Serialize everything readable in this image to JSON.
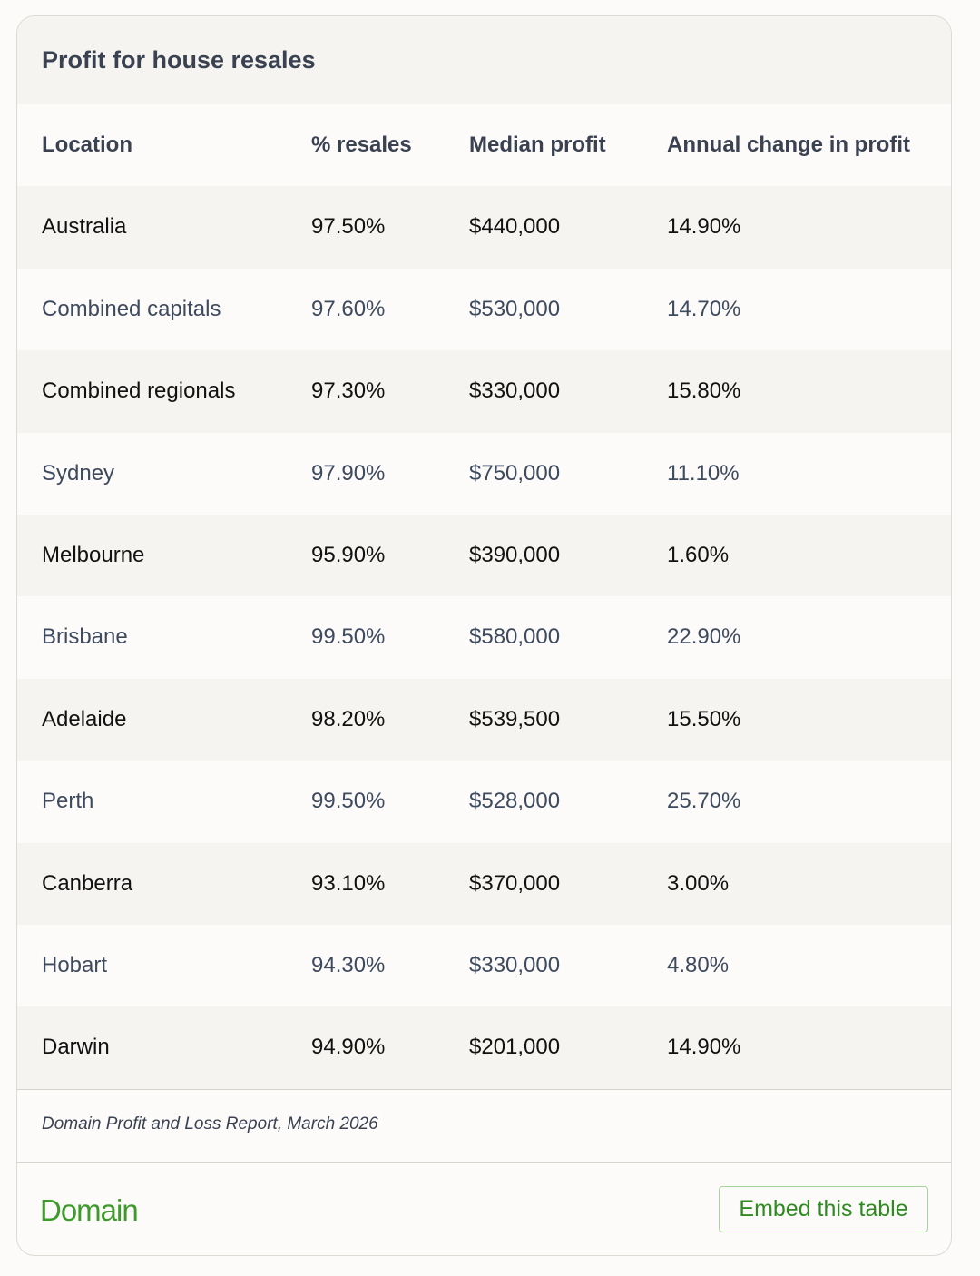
{
  "header": {
    "title": "Profit for house resales"
  },
  "table": {
    "columns": [
      "Location",
      "% resales",
      "Median profit",
      "Annual change in profit"
    ],
    "rows": [
      [
        "Australia",
        "97.50%",
        "$440,000",
        "14.90%"
      ],
      [
        "Combined capitals",
        "97.60%",
        "$530,000",
        "14.70%"
      ],
      [
        "Combined regionals",
        "97.30%",
        "$330,000",
        "15.80%"
      ],
      [
        "Sydney",
        "97.90%",
        "$750,000",
        "11.10%"
      ],
      [
        "Melbourne",
        "95.90%",
        "$390,000",
        "1.60%"
      ],
      [
        "Brisbane",
        "99.50%",
        "$580,000",
        "22.90%"
      ],
      [
        "Adelaide",
        "98.20%",
        "$539,500",
        "15.50%"
      ],
      [
        "Perth",
        "99.50%",
        "$528,000",
        "25.70%"
      ],
      [
        "Canberra",
        "93.10%",
        "$370,000",
        "3.00%"
      ],
      [
        "Hobart",
        "94.30%",
        "$330,000",
        "4.80%"
      ],
      [
        "Darwin",
        "94.90%",
        "$201,000",
        "14.90%"
      ]
    ]
  },
  "source": "Domain Profit and Loss Report, March 2026",
  "footer": {
    "logo": "Domain",
    "button": "Embed this table"
  }
}
